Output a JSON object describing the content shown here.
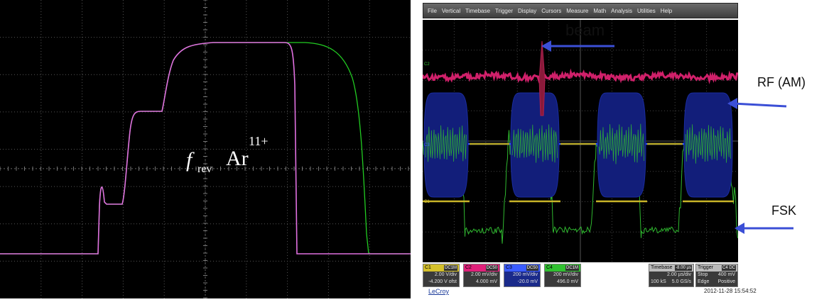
{
  "left": {
    "label_f": "f",
    "label_rev": "rev",
    "label_ion": "Ar",
    "label_charge": "11+",
    "trace_colors": {
      "magenta": "#e070e0",
      "green": "#22cc22"
    }
  },
  "right": {
    "menu": [
      "File",
      "Vertical",
      "Timebase",
      "Trigger",
      "Display",
      "Cursors",
      "Measure",
      "Math",
      "Analysis",
      "Utilities",
      "Help"
    ],
    "channels": [
      {
        "id": "C1",
        "coupling": "DC1M",
        "line1": "2.00 V/div",
        "line2": "-4.200 V ofst",
        "color": "#d4c02a"
      },
      {
        "id": "C2",
        "coupling": "DC50",
        "line1": "2.00 mV/div",
        "line2": "4.000 mV",
        "color": "#e0207a"
      },
      {
        "id": "C3",
        "coupling": "DC50",
        "line1": "200 mV/div",
        "line2": "-20.0 mV",
        "color": "#3a5cff"
      },
      {
        "id": "C4",
        "coupling": "DC1M",
        "line1": "200 mV/div",
        "line2": "496.0 mV",
        "color": "#30c030"
      }
    ],
    "timebase": {
      "label": "Timebase",
      "value": "-8.00 µs",
      "line1": "2.00 µs/div",
      "line2a": "100 kS",
      "line2b": "5.0 GS/s"
    },
    "trigger": {
      "label": "Trigger",
      "value": "C4 DC",
      "line1a": "Stop",
      "line1b": "400 mV",
      "line2a": "Edge",
      "line2b": "Positive"
    },
    "brand": "LeCroy",
    "datestamp": "2012-11-28 15:54:52",
    "annotations": {
      "beam": "beam",
      "rf": "RF (AM)",
      "fsk": "FSK"
    },
    "ch_markers": [
      "C2",
      "C3",
      "C1",
      "C4"
    ]
  }
}
